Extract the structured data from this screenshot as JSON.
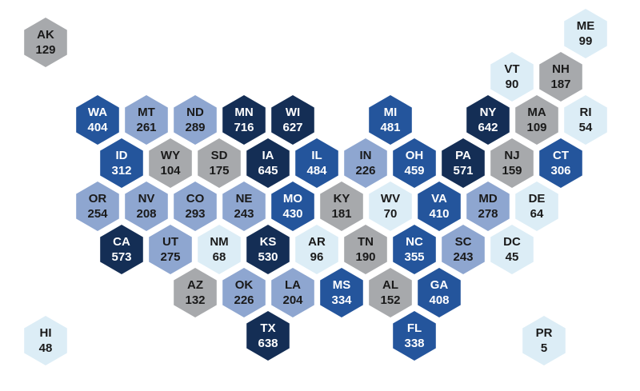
{
  "states": [
    {
      "label": "AK",
      "value": 129,
      "color": "#a7a9ac"
    },
    {
      "label": "ME",
      "value": 99,
      "color": "#dcedf6"
    },
    {
      "label": "VT",
      "value": 90,
      "color": "#dcedf6"
    },
    {
      "label": "NH",
      "value": 187,
      "color": "#a7a9ac"
    },
    {
      "label": "WA",
      "value": 404,
      "color": "#24559c"
    },
    {
      "label": "MT",
      "value": 261,
      "color": "#8ea6d0"
    },
    {
      "label": "ND",
      "value": 289,
      "color": "#8ea6d0"
    },
    {
      "label": "MN",
      "value": 716,
      "color": "#142e55"
    },
    {
      "label": "WI",
      "value": 627,
      "color": "#142e55"
    },
    {
      "label": "MI",
      "value": 481,
      "color": "#24559c"
    },
    {
      "label": "NY",
      "value": 642,
      "color": "#142e55"
    },
    {
      "label": "MA",
      "value": 109,
      "color": "#a7a9ac"
    },
    {
      "label": "RI",
      "value": 54,
      "color": "#dcedf6"
    },
    {
      "label": "ID",
      "value": 312,
      "color": "#24559c"
    },
    {
      "label": "WY",
      "value": 104,
      "color": "#a7a9ac"
    },
    {
      "label": "SD",
      "value": 175,
      "color": "#a7a9ac"
    },
    {
      "label": "IA",
      "value": 645,
      "color": "#142e55"
    },
    {
      "label": "IL",
      "value": 484,
      "color": "#24559c"
    },
    {
      "label": "IN",
      "value": 226,
      "color": "#8ea6d0"
    },
    {
      "label": "OH",
      "value": 459,
      "color": "#24559c"
    },
    {
      "label": "PA",
      "value": 571,
      "color": "#142e55"
    },
    {
      "label": "NJ",
      "value": 159,
      "color": "#a7a9ac"
    },
    {
      "label": "CT",
      "value": 306,
      "color": "#24559c"
    },
    {
      "label": "OR",
      "value": 254,
      "color": "#8ea6d0"
    },
    {
      "label": "NV",
      "value": 208,
      "color": "#8ea6d0"
    },
    {
      "label": "CO",
      "value": 293,
      "color": "#8ea6d0"
    },
    {
      "label": "NE",
      "value": 243,
      "color": "#8ea6d0"
    },
    {
      "label": "MO",
      "value": 430,
      "color": "#24559c"
    },
    {
      "label": "KY",
      "value": 181,
      "color": "#a7a9ac"
    },
    {
      "label": "WV",
      "value": 70,
      "color": "#dcedf6"
    },
    {
      "label": "VA",
      "value": 410,
      "color": "#24559c"
    },
    {
      "label": "MD",
      "value": 278,
      "color": "#8ea6d0"
    },
    {
      "label": "DE",
      "value": 64,
      "color": "#dcedf6"
    },
    {
      "label": "CA",
      "value": 573,
      "color": "#142e55"
    },
    {
      "label": "UT",
      "value": 275,
      "color": "#8ea6d0"
    },
    {
      "label": "NM",
      "value": 68,
      "color": "#dcedf6"
    },
    {
      "label": "KS",
      "value": 530,
      "color": "#142e55"
    },
    {
      "label": "AR",
      "value": 96,
      "color": "#dcedf6"
    },
    {
      "label": "TN",
      "value": 190,
      "color": "#a7a9ac"
    },
    {
      "label": "NC",
      "value": 355,
      "color": "#24559c"
    },
    {
      "label": "SC",
      "value": 243,
      "color": "#8ea6d0"
    },
    {
      "label": "DC",
      "value": 45,
      "color": "#dcedf6"
    },
    {
      "label": "AZ",
      "value": 132,
      "color": "#a7a9ac"
    },
    {
      "label": "OK",
      "value": 226,
      "color": "#8ea6d0"
    },
    {
      "label": "LA",
      "value": 204,
      "color": "#8ea6d0"
    },
    {
      "label": "MS",
      "value": 334,
      "color": "#24559c"
    },
    {
      "label": "AL",
      "value": 152,
      "color": "#a7a9ac"
    },
    {
      "label": "GA",
      "value": 408,
      "color": "#24559c"
    },
    {
      "label": "TX",
      "value": 638,
      "color": "#142e55"
    },
    {
      "label": "FL",
      "value": 338,
      "color": "#24559c"
    },
    {
      "label": "HI",
      "value": 48,
      "color": "#dcedf6"
    },
    {
      "label": "PR",
      "value": 5,
      "color": "#dcedf6"
    }
  ]
}
